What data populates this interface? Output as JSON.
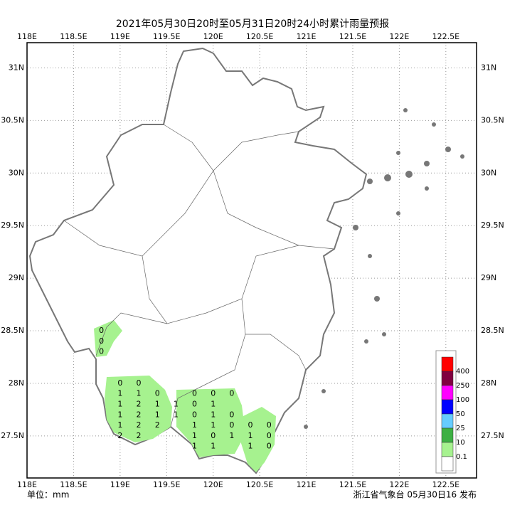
{
  "title": "2021年05月30日20时至05月31日20时24小时累计雨量预报",
  "unit_label": "单位：mm",
  "issuer": "浙江省气象台 05月30日16 发布",
  "map": {
    "xlim": [
      118,
      122.83
    ],
    "ylim": [
      27.1,
      31.24
    ],
    "xticks": [
      {
        "value": 118,
        "label": "118E"
      },
      {
        "value": 118.5,
        "label": "118.5E"
      },
      {
        "value": 119,
        "label": "119E"
      },
      {
        "value": 119.5,
        "label": "119.5E"
      },
      {
        "value": 120,
        "label": "120E"
      },
      {
        "value": 120.5,
        "label": "120.5E"
      },
      {
        "value": 121,
        "label": "121E"
      },
      {
        "value": 121.5,
        "label": "121.5E"
      },
      {
        "value": 122,
        "label": "122E"
      },
      {
        "value": 122.5,
        "label": "122.5E"
      }
    ],
    "yticks": [
      {
        "value": 31,
        "label": "31N"
      },
      {
        "value": 30.5,
        "label": "30.5N"
      },
      {
        "value": 30,
        "label": "30N"
      },
      {
        "value": 29.5,
        "label": "29.5N"
      },
      {
        "value": 29,
        "label": "29N"
      },
      {
        "value": 28.5,
        "label": "28.5N"
      },
      {
        "value": 28,
        "label": "28N"
      },
      {
        "value": 27.5,
        "label": "27.5N"
      }
    ],
    "grid": true,
    "points": [
      {
        "lon": 118.8,
        "lat": 28.5,
        "value": 0
      },
      {
        "lon": 118.8,
        "lat": 28.4,
        "value": 0
      },
      {
        "lon": 118.8,
        "lat": 28.3,
        "value": 0
      },
      {
        "lon": 119.0,
        "lat": 28.0,
        "value": 0
      },
      {
        "lon": 119.2,
        "lat": 28.0,
        "value": 0
      },
      {
        "lon": 119.0,
        "lat": 27.9,
        "value": 1
      },
      {
        "lon": 119.2,
        "lat": 27.9,
        "value": 1
      },
      {
        "lon": 119.4,
        "lat": 27.9,
        "value": 0
      },
      {
        "lon": 119.8,
        "lat": 27.9,
        "value": 0
      },
      {
        "lon": 120.0,
        "lat": 27.9,
        "value": 0
      },
      {
        "lon": 120.2,
        "lat": 27.9,
        "value": 0
      },
      {
        "lon": 119.0,
        "lat": 27.8,
        "value": 1
      },
      {
        "lon": 119.2,
        "lat": 27.8,
        "value": 2
      },
      {
        "lon": 119.4,
        "lat": 27.8,
        "value": 1
      },
      {
        "lon": 119.6,
        "lat": 27.8,
        "value": 1
      },
      {
        "lon": 119.8,
        "lat": 27.8,
        "value": 0
      },
      {
        "lon": 120.0,
        "lat": 27.8,
        "value": 1
      },
      {
        "lon": 119.0,
        "lat": 27.7,
        "value": 1
      },
      {
        "lon": 119.2,
        "lat": 27.7,
        "value": 2
      },
      {
        "lon": 119.4,
        "lat": 27.7,
        "value": 1
      },
      {
        "lon": 119.6,
        "lat": 27.7,
        "value": 1
      },
      {
        "lon": 119.8,
        "lat": 27.7,
        "value": 0
      },
      {
        "lon": 120.0,
        "lat": 27.7,
        "value": 1
      },
      {
        "lon": 120.2,
        "lat": 27.7,
        "value": 0
      },
      {
        "lon": 119.0,
        "lat": 27.6,
        "value": 1
      },
      {
        "lon": 119.2,
        "lat": 27.6,
        "value": 2
      },
      {
        "lon": 119.4,
        "lat": 27.6,
        "value": 2
      },
      {
        "lon": 119.8,
        "lat": 27.6,
        "value": 1
      },
      {
        "lon": 120.0,
        "lat": 27.6,
        "value": 1
      },
      {
        "lon": 120.2,
        "lat": 27.6,
        "value": 0
      },
      {
        "lon": 120.4,
        "lat": 27.6,
        "value": 0
      },
      {
        "lon": 120.6,
        "lat": 27.6,
        "value": 0
      },
      {
        "lon": 119.0,
        "lat": 27.5,
        "value": 2
      },
      {
        "lon": 119.2,
        "lat": 27.5,
        "value": 2
      },
      {
        "lon": 119.8,
        "lat": 27.5,
        "value": 1
      },
      {
        "lon": 120.0,
        "lat": 27.5,
        "value": 0
      },
      {
        "lon": 120.2,
        "lat": 27.5,
        "value": 1
      },
      {
        "lon": 120.4,
        "lat": 27.5,
        "value": 1
      },
      {
        "lon": 120.6,
        "lat": 27.5,
        "value": 0
      },
      {
        "lon": 119.8,
        "lat": 27.4,
        "value": 1
      },
      {
        "lon": 120.0,
        "lat": 27.4,
        "value": 1
      },
      {
        "lon": 120.4,
        "lat": 27.4,
        "value": 1
      },
      {
        "lon": 120.6,
        "lat": 27.4,
        "value": 0
      }
    ]
  },
  "legend": {
    "levels": [
      400,
      250,
      100,
      50,
      25,
      10,
      0.1
    ],
    "colors": [
      "#ff0000",
      "#800040",
      "#ff00ff",
      "#0000ff",
      "#66ccff",
      "#3cb043",
      "#a6f28f",
      "#ffffff"
    ]
  }
}
